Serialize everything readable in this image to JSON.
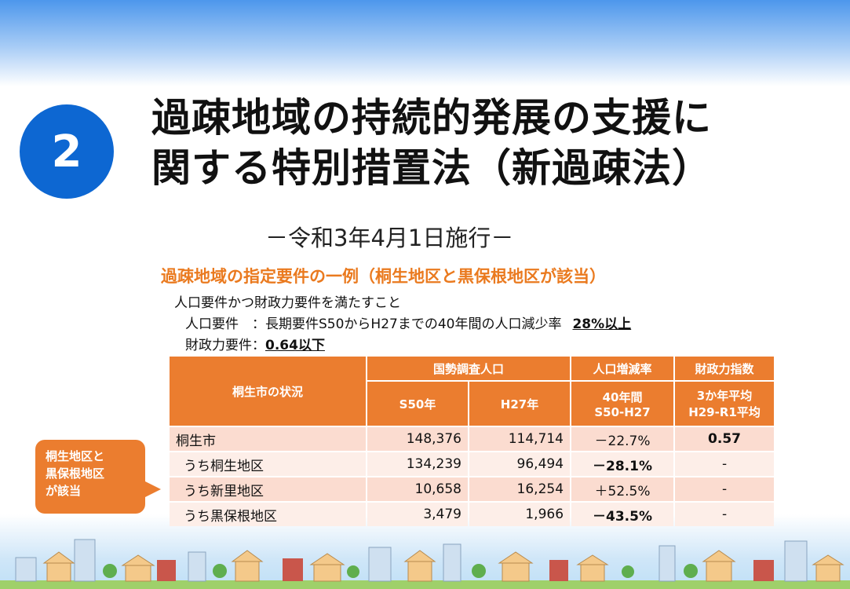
{
  "badge_number": "2",
  "title_line1": "過疎地域の持続的発展の支援に",
  "title_line2": "関する特別措置法（新過疎法）",
  "subtitle": "－令和3年4月1日施行－",
  "conditions": {
    "heading": "過疎地域の指定要件の一例（桐生地区と黒保根地区が該当）",
    "line1": "人口要件かつ財政力要件を満たすこと",
    "line2_label": "人口要件　：長期要件S50からH27までの40年間の人口減少率",
    "line2_value": "28%以上",
    "line3_label": "財政力要件：",
    "line3_value": "0.64以下"
  },
  "table": {
    "header_status": "桐生市の状況",
    "header_census": "国勢調査人口",
    "header_change": "人口増減率",
    "header_fiscal": "財政力指数",
    "sub_s50": "S50年",
    "sub_h27": "H27年",
    "sub_change_l1": "40年間",
    "sub_change_l2": "S50-H27",
    "sub_fiscal_l1": "3か年平均",
    "sub_fiscal_l2": "H29-R1平均",
    "rows": [
      {
        "name": "桐生市",
        "s50": "148,376",
        "h27": "114,714",
        "rate": "－22.7%",
        "fiscal": "0.57"
      },
      {
        "name": "うち桐生地区",
        "s50": "134,239",
        "h27": "96,494",
        "rate": "－28.1%",
        "fiscal": "-"
      },
      {
        "name": "うち新里地区",
        "s50": "10,658",
        "h27": "16,254",
        "rate": "＋52.5%",
        "fiscal": "-"
      },
      {
        "name": "うち黒保根地区",
        "s50": "3,479",
        "h27": "1,966",
        "rate": "－43.5%",
        "fiscal": "-"
      }
    ]
  },
  "callout": {
    "line1": "桐生地区と",
    "line2": "黒保根地区",
    "line3": "が該当"
  },
  "colors": {
    "accent_orange": "#eb7d2f",
    "badge_blue": "#0d67d2",
    "negative_red": "#e3212b"
  }
}
